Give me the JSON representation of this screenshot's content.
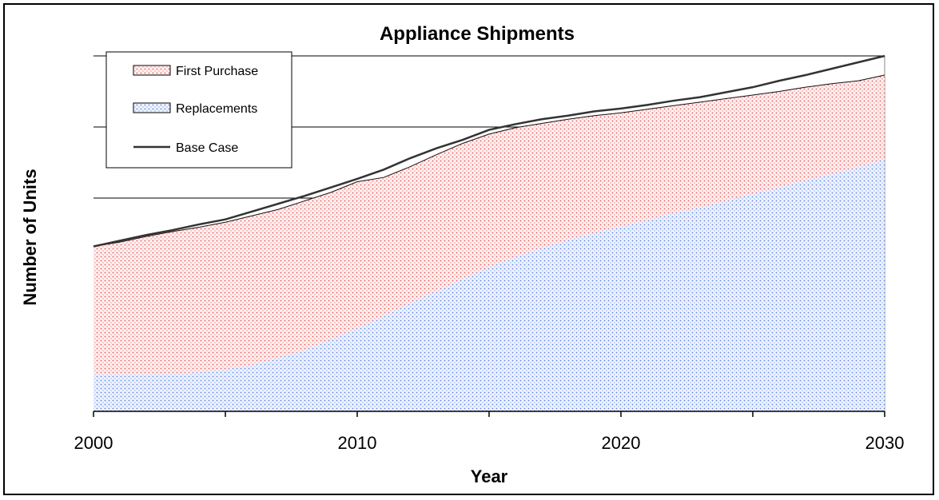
{
  "chart_data": {
    "type": "area",
    "title": "Appliance Shipments",
    "xlabel": "Year",
    "ylabel": "Number of Units",
    "xlim": [
      2000,
      2030
    ],
    "ylim": [
      0,
      5
    ],
    "x_ticks": [
      "2000",
      "2010",
      "2020",
      "2030"
    ],
    "y_tick_labels_shown": false,
    "grid": "horizontal",
    "legend_position": "top-left",
    "x": [
      2000,
      2001,
      2002,
      2003,
      2004,
      2005,
      2006,
      2007,
      2008,
      2009,
      2010,
      2011,
      2012,
      2013,
      2014,
      2015,
      2016,
      2017,
      2018,
      2019,
      2020,
      2021,
      2022,
      2023,
      2024,
      2025,
      2026,
      2027,
      2028,
      2029,
      2030
    ],
    "series": [
      {
        "name": "Replacements",
        "kind": "stacked-area",
        "color": "#6f95e8",
        "values": [
          0.52,
          0.52,
          0.52,
          0.53,
          0.55,
          0.59,
          0.65,
          0.75,
          0.86,
          1.01,
          1.17,
          1.34,
          1.52,
          1.69,
          1.86,
          2.03,
          2.17,
          2.3,
          2.41,
          2.51,
          2.6,
          2.69,
          2.79,
          2.87,
          2.96,
          3.06,
          3.15,
          3.25,
          3.34,
          3.43,
          3.55
        ]
      },
      {
        "name": "First Purchase",
        "kind": "stacked-area",
        "color": "#e86f6f",
        "values": [
          1.8,
          1.86,
          1.94,
          2.0,
          2.04,
          2.07,
          2.1,
          2.09,
          2.1,
          2.07,
          2.06,
          1.95,
          1.92,
          1.92,
          1.91,
          1.87,
          1.82,
          1.75,
          1.7,
          1.65,
          1.6,
          1.56,
          1.51,
          1.48,
          1.44,
          1.39,
          1.35,
          1.31,
          1.27,
          1.22,
          1.18
        ]
      },
      {
        "name": "Base Case",
        "kind": "line",
        "color": "#333333",
        "values": [
          2.32,
          2.4,
          2.48,
          2.55,
          2.63,
          2.7,
          2.81,
          2.92,
          3.03,
          3.15,
          3.27,
          3.4,
          3.56,
          3.7,
          3.82,
          3.96,
          4.04,
          4.11,
          4.16,
          4.22,
          4.26,
          4.31,
          4.37,
          4.42,
          4.49,
          4.56,
          4.65,
          4.73,
          4.82,
          4.91,
          5.0
        ]
      }
    ]
  }
}
